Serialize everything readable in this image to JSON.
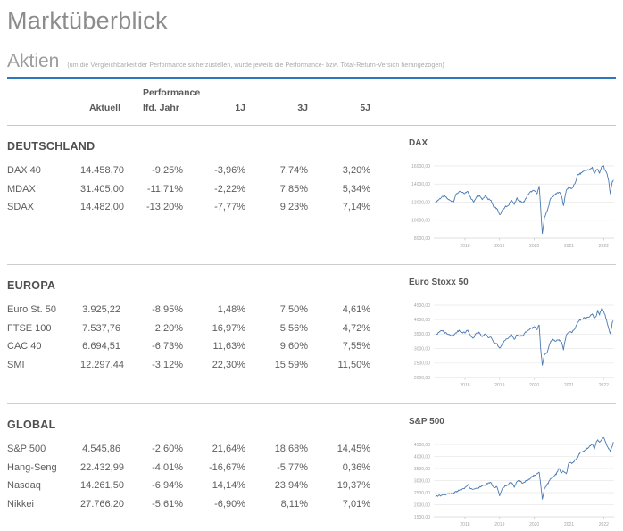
{
  "header": {
    "title": "Marktüberblick"
  },
  "aktien": {
    "title": "Aktien",
    "note": "(um die Vergleichbarkeit der Performance sicherzustellen, wurde jeweils die Performance- bzw. Total-Return-Version herangezogen)"
  },
  "table": {
    "performance_label": "Performance",
    "columns": [
      "Aktuell",
      "lfd. Jahr",
      "1J",
      "3J",
      "5J"
    ]
  },
  "sections": [
    {
      "name": "DEUTSCHLAND",
      "rows": [
        [
          "DAX 40",
          "14.458,70",
          "-9,25%",
          "-3,96%",
          "7,74%",
          "3,20%"
        ],
        [
          "MDAX",
          "31.405,00",
          "-11,71%",
          "-2,22%",
          "7,85%",
          "5,34%"
        ],
        [
          "SDAX",
          "14.482,00",
          "-13,20%",
          "-7,77%",
          "9,23%",
          "7,14%"
        ]
      ]
    },
    {
      "name": "EUROPA",
      "rows": [
        [
          "Euro St. 50",
          "3.925,22",
          "-8,95%",
          "1,48%",
          "7,50%",
          "4,61%"
        ],
        [
          "FTSE 100",
          "7.537,76",
          "2,20%",
          "16,97%",
          "5,56%",
          "4,72%"
        ],
        [
          "CAC 40",
          "6.694,51",
          "-6,73%",
          "11,63%",
          "9,60%",
          "7,55%"
        ],
        [
          "SMI",
          "12.297,44",
          "-3,12%",
          "22,30%",
          "15,59%",
          "11,50%"
        ]
      ]
    },
    {
      "name": "GLOBAL",
      "rows": [
        [
          "S&P 500",
          "4.545,86",
          "-2,60%",
          "21,64%",
          "18,68%",
          "14,45%"
        ],
        [
          "Hang-Seng",
          "22.432,99",
          "-4,01%",
          "-16,67%",
          "-5,77%",
          "0,36%"
        ],
        [
          "Nasdaq",
          "14.261,50",
          "-6,94%",
          "14,14%",
          "23,94%",
          "19,37%"
        ],
        [
          "Nikkei",
          "27.766,20",
          "-5,61%",
          "-6,90%",
          "8,11%",
          "7,01%"
        ]
      ]
    }
  ],
  "colors": {
    "accent_rule": "#2e79bd",
    "chart_line": "#4879b2",
    "gridline": "#e8e8e8",
    "axis_text": "#a3a3a3",
    "divider": "#cdcdcd",
    "body_text": "#595959"
  },
  "chart_data": [
    {
      "type": "line",
      "title": "DAX",
      "xlim": [
        2017.1,
        2022.3
      ],
      "ylim": [
        8000,
        16000
      ],
      "x_ticks": [
        {
          "v": 2018,
          "label": "2018"
        },
        {
          "v": 2019,
          "label": "2019"
        },
        {
          "v": 2020,
          "label": "2020"
        },
        {
          "v": 2021,
          "label": "2021"
        },
        {
          "v": 2022,
          "label": "2022"
        }
      ],
      "y_ticks": [
        {
          "v": 16000,
          "label": "16000,00"
        },
        {
          "v": 14000,
          "label": "14000,00"
        },
        {
          "v": 12000,
          "label": "12000,00"
        },
        {
          "v": 10000,
          "label": "10000,00"
        },
        {
          "v": 8000,
          "label": "8000,00"
        }
      ],
      "x": [
        2017.15,
        2017.25,
        2017.33,
        2017.42,
        2017.5,
        2017.58,
        2017.67,
        2017.75,
        2017.83,
        2017.92,
        2018.0,
        2018.08,
        2018.17,
        2018.25,
        2018.33,
        2018.42,
        2018.5,
        2018.58,
        2018.67,
        2018.75,
        2018.83,
        2018.92,
        2019.0,
        2019.08,
        2019.17,
        2019.25,
        2019.33,
        2019.42,
        2019.5,
        2019.58,
        2019.67,
        2019.75,
        2019.83,
        2019.92,
        2020.0,
        2020.08,
        2020.14,
        2020.18,
        2020.23,
        2020.29,
        2020.38,
        2020.46,
        2020.54,
        2020.63,
        2020.71,
        2020.79,
        2020.84,
        2020.92,
        2021.0,
        2021.08,
        2021.17,
        2021.25,
        2021.33,
        2021.42,
        2021.5,
        2021.58,
        2021.67,
        2021.73,
        2021.79,
        2021.83,
        2021.88,
        2021.94,
        2022.0,
        2022.04,
        2022.1,
        2022.14,
        2022.19,
        2022.25,
        2022.28
      ],
      "values": [
        12000,
        12300,
        12550,
        12650,
        12350,
        12150,
        12100,
        12900,
        13150,
        13050,
        12950,
        13250,
        12400,
        12050,
        12600,
        12750,
        12300,
        12750,
        12350,
        12250,
        11450,
        11300,
        10550,
        11150,
        11500,
        11550,
        12300,
        11750,
        12400,
        12150,
        11900,
        12350,
        12900,
        13200,
        13250,
        13000,
        13700,
        11500,
        8450,
        10300,
        11100,
        12300,
        12650,
        12900,
        13150,
        12650,
        11600,
        13300,
        13700,
        13450,
        14050,
        15000,
        15150,
        15450,
        15550,
        15550,
        15850,
        15150,
        15550,
        15700,
        15150,
        15900,
        16000,
        15450,
        15100,
        14450,
        12900,
        14300,
        14460
      ]
    },
    {
      "type": "line",
      "title": "Euro Stoxx 50",
      "xlim": [
        2017.1,
        2022.3
      ],
      "ylim": [
        2000,
        4500
      ],
      "x_ticks": [
        {
          "v": 2018,
          "label": "2018"
        },
        {
          "v": 2019,
          "label": "2019"
        },
        {
          "v": 2020,
          "label": "2020"
        },
        {
          "v": 2021,
          "label": "2021"
        },
        {
          "v": 2022,
          "label": "2022"
        }
      ],
      "y_ticks": [
        {
          "v": 4500,
          "label": "4500,00"
        },
        {
          "v": 4000,
          "label": "4000,00"
        },
        {
          "v": 3500,
          "label": "3500,00"
        },
        {
          "v": 3000,
          "label": "3000,00"
        },
        {
          "v": 2500,
          "label": "2500,00"
        },
        {
          "v": 2000,
          "label": "2000,00"
        }
      ],
      "x": [
        2017.15,
        2017.25,
        2017.33,
        2017.42,
        2017.5,
        2017.58,
        2017.67,
        2017.75,
        2017.83,
        2017.92,
        2018.0,
        2018.08,
        2018.17,
        2018.25,
        2018.33,
        2018.42,
        2018.5,
        2018.58,
        2018.67,
        2018.75,
        2018.83,
        2018.92,
        2019.0,
        2019.08,
        2019.17,
        2019.25,
        2019.33,
        2019.42,
        2019.5,
        2019.58,
        2019.67,
        2019.75,
        2019.83,
        2019.92,
        2020.0,
        2020.08,
        2020.14,
        2020.18,
        2020.23,
        2020.29,
        2020.38,
        2020.46,
        2020.54,
        2020.63,
        2020.71,
        2020.79,
        2020.84,
        2020.92,
        2021.0,
        2021.08,
        2021.17,
        2021.25,
        2021.33,
        2021.42,
        2021.5,
        2021.58,
        2021.67,
        2021.73,
        2021.79,
        2021.83,
        2021.88,
        2021.94,
        2022.0,
        2022.04,
        2022.1,
        2022.14,
        2022.19,
        2022.25,
        2022.28
      ],
      "values": [
        3480,
        3550,
        3620,
        3560,
        3480,
        3450,
        3430,
        3560,
        3620,
        3560,
        3550,
        3650,
        3420,
        3360,
        3540,
        3550,
        3400,
        3520,
        3400,
        3400,
        3200,
        3170,
        3000,
        3160,
        3300,
        3350,
        3500,
        3320,
        3480,
        3450,
        3430,
        3570,
        3620,
        3700,
        3750,
        3650,
        3840,
        3050,
        2400,
        2780,
        2900,
        3230,
        3300,
        3270,
        3300,
        3200,
        2950,
        3480,
        3550,
        3570,
        3670,
        3920,
        4000,
        4050,
        4060,
        4100,
        4200,
        4050,
        4150,
        4300,
        4180,
        4390,
        4300,
        4150,
        3900,
        3700,
        3500,
        3900,
        3950
      ]
    },
    {
      "type": "line",
      "title": "S&P 500",
      "xlim": [
        2017.1,
        2022.3
      ],
      "ylim": [
        1500,
        4500
      ],
      "x_ticks": [
        {
          "v": 2018,
          "label": "2018"
        },
        {
          "v": 2019,
          "label": "2019"
        },
        {
          "v": 2020,
          "label": "2020"
        },
        {
          "v": 2021,
          "label": "2021"
        },
        {
          "v": 2022,
          "label": "2022"
        }
      ],
      "y_ticks": [
        {
          "v": 4500,
          "label": "4500,00"
        },
        {
          "v": 4000,
          "label": "4000,00"
        },
        {
          "v": 3500,
          "label": "3500,00"
        },
        {
          "v": 3000,
          "label": "3000,00"
        },
        {
          "v": 2500,
          "label": "2500,00"
        },
        {
          "v": 2000,
          "label": "2000,00"
        },
        {
          "v": 1500,
          "label": "1500,00"
        }
      ],
      "x": [
        2017.15,
        2017.25,
        2017.33,
        2017.42,
        2017.5,
        2017.58,
        2017.67,
        2017.75,
        2017.83,
        2017.92,
        2018.0,
        2018.08,
        2018.17,
        2018.25,
        2018.33,
        2018.42,
        2018.5,
        2018.58,
        2018.67,
        2018.75,
        2018.83,
        2018.92,
        2019.0,
        2019.08,
        2019.17,
        2019.25,
        2019.33,
        2019.42,
        2019.5,
        2019.58,
        2019.67,
        2019.75,
        2019.83,
        2019.92,
        2020.0,
        2020.08,
        2020.14,
        2020.18,
        2020.23,
        2020.29,
        2020.38,
        2020.46,
        2020.54,
        2020.63,
        2020.71,
        2020.79,
        2020.84,
        2020.92,
        2021.0,
        2021.08,
        2021.17,
        2021.25,
        2021.33,
        2021.42,
        2021.5,
        2021.58,
        2021.67,
        2021.73,
        2021.79,
        2021.83,
        2021.88,
        2021.94,
        2022.0,
        2022.04,
        2022.1,
        2022.14,
        2022.19,
        2022.25,
        2022.28
      ],
      "values": [
        2360,
        2370,
        2390,
        2420,
        2440,
        2470,
        2480,
        2550,
        2580,
        2650,
        2680,
        2850,
        2650,
        2640,
        2670,
        2720,
        2750,
        2820,
        2900,
        2920,
        2700,
        2760,
        2380,
        2700,
        2790,
        2830,
        2940,
        2750,
        2960,
        2980,
        2890,
        2980,
        3040,
        3140,
        3230,
        3270,
        3380,
        2850,
        2240,
        2650,
        2850,
        3050,
        3130,
        3270,
        3500,
        3310,
        3400,
        3270,
        3760,
        3720,
        3840,
        3970,
        4180,
        4200,
        4300,
        4400,
        4520,
        4310,
        4600,
        4680,
        4570,
        4710,
        4790,
        4680,
        4400,
        4350,
        4200,
        4450,
        4600
      ]
    }
  ]
}
